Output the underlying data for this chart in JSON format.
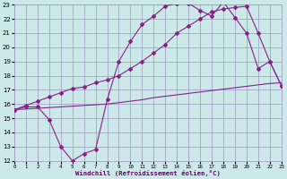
{
  "xlabel": "Windchill (Refroidissement éolien,°C)",
  "bg_color": "#cce8e8",
  "grid_color": "#9999bb",
  "line_color": "#882288",
  "xlim": [
    0,
    23
  ],
  "ylim": [
    12,
    23
  ],
  "xticks": [
    0,
    1,
    2,
    3,
    4,
    5,
    6,
    7,
    8,
    9,
    10,
    11,
    12,
    13,
    14,
    15,
    16,
    17,
    18,
    19,
    20,
    21,
    22,
    23
  ],
  "yticks": [
    12,
    13,
    14,
    15,
    16,
    17,
    18,
    19,
    20,
    21,
    22,
    23
  ],
  "line1_x": [
    0,
    1,
    2,
    3,
    4,
    5,
    6,
    7,
    8,
    9,
    10,
    11,
    12,
    13,
    14,
    15,
    16,
    17,
    18,
    19,
    20,
    21,
    22,
    23
  ],
  "line1_y": [
    15.6,
    15.8,
    15.8,
    14.9,
    13.0,
    12.0,
    12.5,
    12.8,
    16.3,
    19.0,
    20.4,
    21.6,
    22.2,
    22.9,
    23.1,
    23.1,
    22.6,
    22.2,
    23.2,
    22.1,
    21.0,
    18.5,
    19.0,
    17.3
  ],
  "line2_x": [
    0,
    1,
    2,
    3,
    4,
    5,
    6,
    7,
    8,
    9,
    10,
    11,
    12,
    13,
    14,
    15,
    16,
    17,
    18,
    19,
    20,
    21,
    22,
    23
  ],
  "line2_y": [
    15.6,
    15.9,
    16.2,
    16.5,
    16.8,
    17.1,
    17.2,
    17.5,
    17.7,
    18.0,
    18.5,
    19.0,
    19.6,
    20.2,
    21.0,
    21.5,
    22.0,
    22.5,
    22.7,
    22.8,
    22.9,
    21.0,
    19.0,
    17.3
  ],
  "line3_x": [
    0,
    1,
    2,
    3,
    4,
    5,
    6,
    7,
    8,
    9,
    10,
    11,
    12,
    13,
    14,
    15,
    16,
    17,
    18,
    19,
    20,
    21,
    22,
    23
  ],
  "line3_y": [
    15.6,
    15.65,
    15.7,
    15.75,
    15.8,
    15.85,
    15.9,
    15.95,
    16.0,
    16.1,
    16.2,
    16.3,
    16.45,
    16.55,
    16.65,
    16.75,
    16.85,
    16.95,
    17.05,
    17.15,
    17.25,
    17.35,
    17.45,
    17.5
  ]
}
